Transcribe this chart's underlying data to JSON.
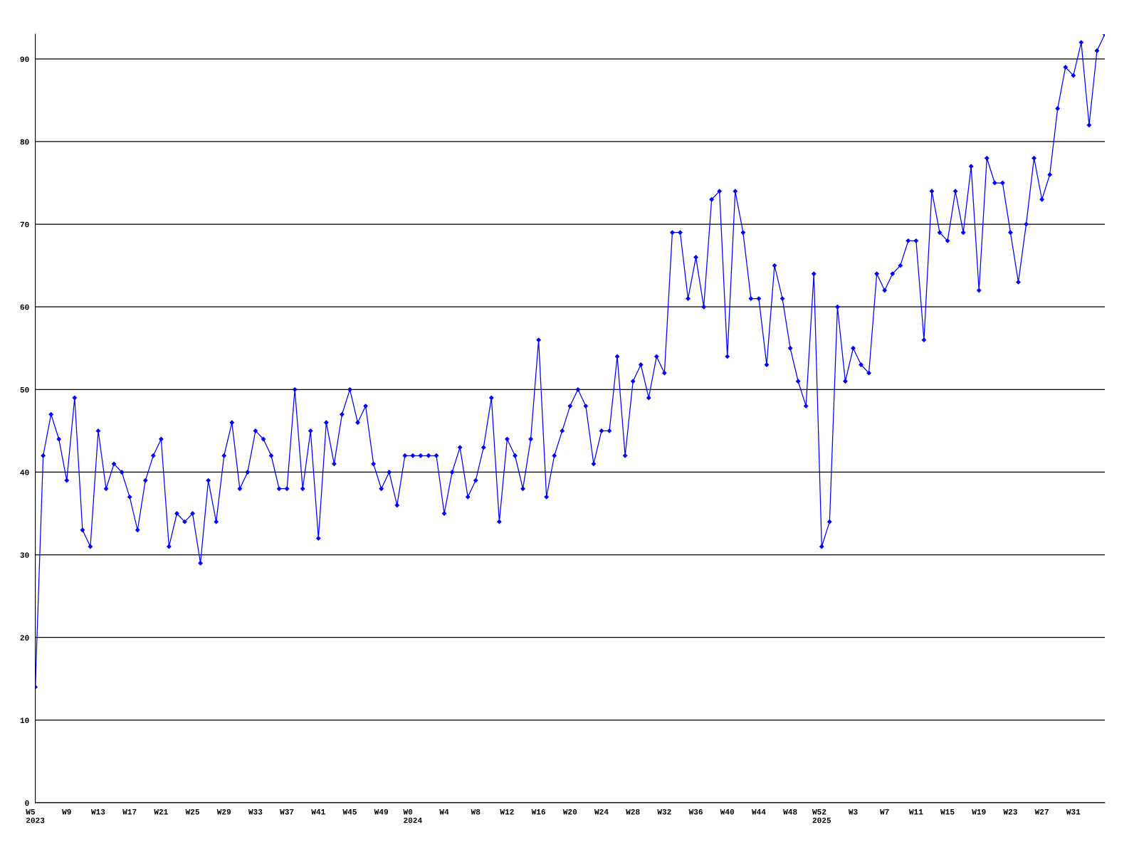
{
  "chart_data": {
    "type": "line",
    "categories": [
      "W5\n2023",
      null,
      null,
      null,
      "W9",
      null,
      null,
      null,
      "W13",
      null,
      null,
      null,
      "W17",
      null,
      null,
      null,
      "W21",
      null,
      null,
      null,
      "W25",
      null,
      null,
      null,
      "W29",
      null,
      null,
      null,
      "W33",
      null,
      null,
      null,
      "W37",
      null,
      null,
      null,
      "W41",
      null,
      null,
      null,
      "W45",
      null,
      null,
      null,
      "W49",
      null,
      null,
      null,
      "W0\n2024",
      null,
      null,
      null,
      "W4",
      null,
      null,
      null,
      "W8",
      null,
      null,
      null,
      "W12",
      null,
      null,
      null,
      "W16",
      null,
      null,
      null,
      "W20",
      null,
      null,
      null,
      "W24",
      null,
      null,
      null,
      "W28",
      null,
      null,
      null,
      "W32",
      null,
      null,
      null,
      "W36",
      null,
      null,
      null,
      "W40",
      null,
      null,
      null,
      "W44",
      null,
      null,
      null,
      "W48",
      null,
      null,
      null,
      "W52\n2025",
      null,
      null,
      null,
      "W3",
      null,
      null,
      null,
      "W7",
      null,
      null,
      null,
      "W11",
      null,
      null,
      null,
      "W15",
      null,
      null,
      null,
      "W19",
      null,
      null,
      null,
      "W23",
      null,
      null,
      null,
      "W27",
      null,
      null,
      null,
      "W31",
      null,
      null,
      null,
      null
    ],
    "series": [
      {
        "color": "#0000ff",
        "values": [
          14,
          42,
          47,
          44,
          39,
          49,
          33,
          31,
          45,
          38,
          41,
          40,
          37,
          33,
          39,
          42,
          44,
          31,
          35,
          34,
          35,
          29,
          39,
          34,
          42,
          46,
          38,
          40,
          45,
          44,
          42,
          38,
          38,
          50,
          38,
          45,
          32,
          46,
          41,
          47,
          50,
          46,
          48,
          41,
          38,
          40,
          36,
          42,
          42,
          42,
          42,
          42,
          35,
          40,
          43,
          37,
          39,
          43,
          49,
          34,
          44,
          42,
          38,
          44,
          56,
          37,
          42,
          45,
          48,
          50,
          48,
          41,
          45,
          45,
          54,
          42,
          51,
          53,
          49,
          54,
          52,
          69,
          69,
          61,
          66,
          60,
          73,
          74,
          54,
          74,
          69,
          61,
          61,
          53,
          65,
          61,
          55,
          51,
          48,
          64,
          31,
          34,
          60,
          51,
          55,
          53,
          52,
          64,
          62,
          64,
          65,
          68,
          68,
          56,
          74,
          69,
          68,
          74,
          69,
          77,
          62,
          78,
          75,
          75,
          69,
          63,
          70,
          78,
          73,
          76,
          84,
          89,
          88,
          92,
          82,
          91,
          93
        ]
      }
    ],
    "ylim": [
      0,
      93
    ],
    "yticks": [
      0,
      10,
      20,
      30,
      40,
      50,
      60,
      70,
      80,
      90
    ],
    "grid": "y",
    "marker": "diamond",
    "line_style": "solid"
  }
}
